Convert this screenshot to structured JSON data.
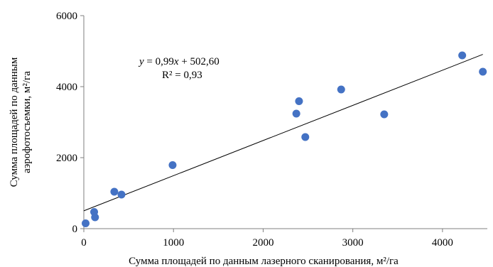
{
  "chart_data": {
    "type": "scatter",
    "title": "",
    "xlabel": "Сумма площадей по данным лазерного сканирования, м²/га",
    "ylabel_line1": "Сумма площадей по данным",
    "ylabel_line2": "аэрофотосъемки, м²/га",
    "xlim": [
      0,
      4500
    ],
    "ylim": [
      0,
      6000
    ],
    "xticks": [
      0,
      1000,
      2000,
      3000,
      4000
    ],
    "yticks": [
      0,
      2000,
      4000,
      6000
    ],
    "grid": false,
    "points": [
      {
        "x": 20,
        "y": 150
      },
      {
        "x": 115,
        "y": 470
      },
      {
        "x": 125,
        "y": 320
      },
      {
        "x": 340,
        "y": 1040
      },
      {
        "x": 420,
        "y": 960
      },
      {
        "x": 990,
        "y": 1790
      },
      {
        "x": 2370,
        "y": 3240
      },
      {
        "x": 2400,
        "y": 3590
      },
      {
        "x": 2470,
        "y": 2580
      },
      {
        "x": 2870,
        "y": 3920
      },
      {
        "x": 3350,
        "y": 3220
      },
      {
        "x": 4220,
        "y": 4880
      },
      {
        "x": 4450,
        "y": 4420
      }
    ],
    "trendline": {
      "slope": 0.99,
      "intercept": 502.6,
      "x_range": [
        0,
        4450
      ]
    },
    "equation": {
      "y": "y",
      "rest": " = 0,99",
      "x": "x",
      "tail": " + 502,60"
    },
    "r2": "R² = 0,93",
    "marker_color": "#4472C4"
  }
}
